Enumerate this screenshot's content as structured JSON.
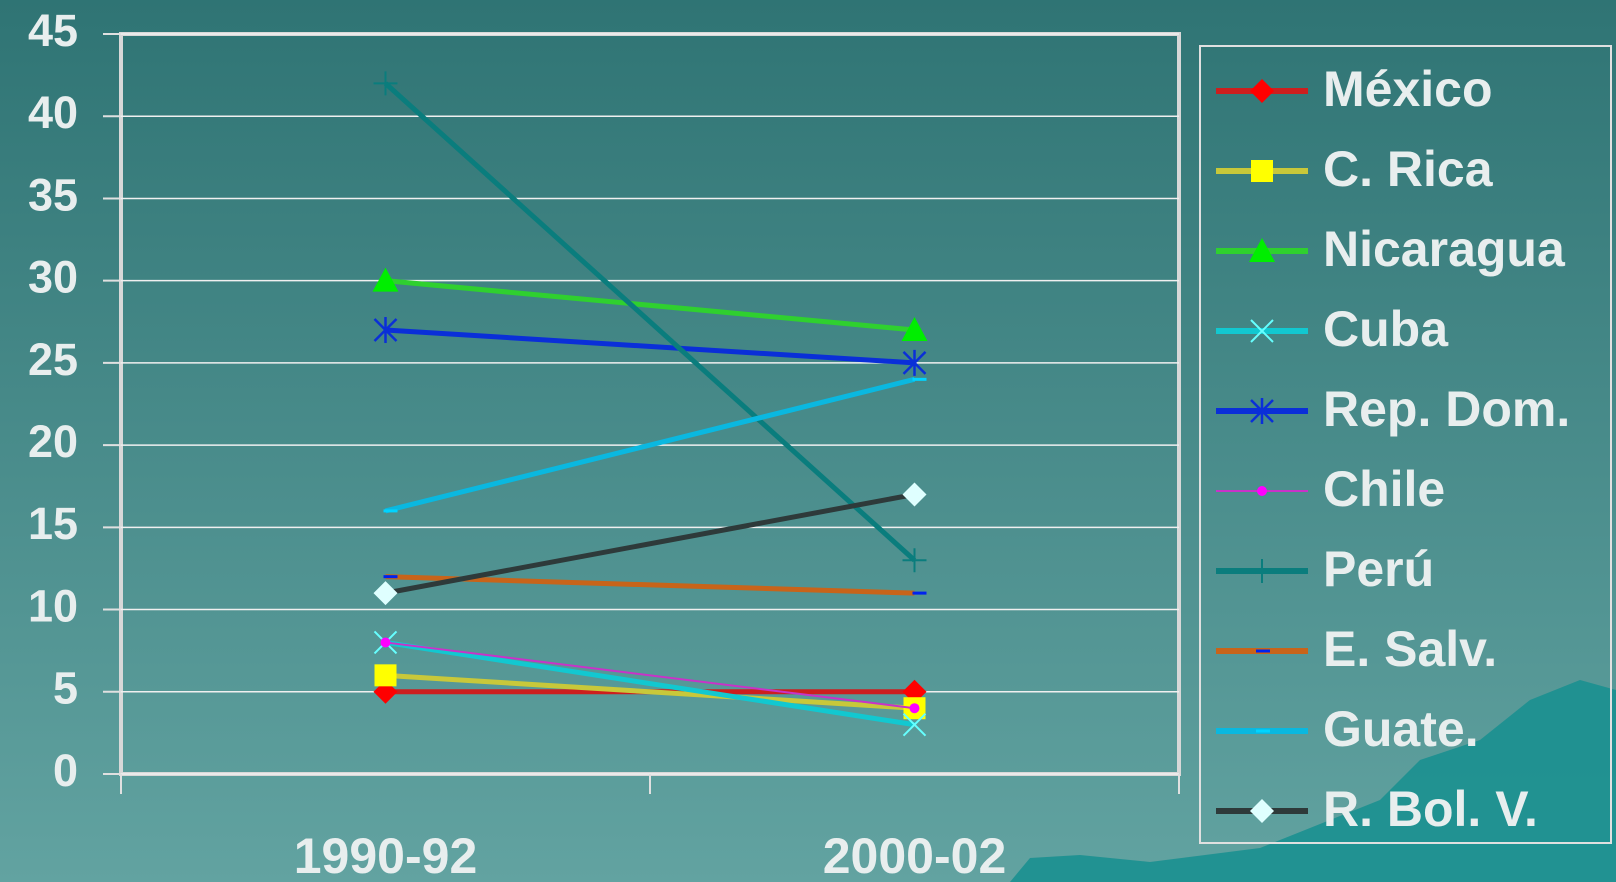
{
  "chart_data": {
    "type": "line",
    "categories": [
      "1990-92",
      "2000-02"
    ],
    "ylim": [
      0,
      45
    ],
    "yticks": [
      0,
      5,
      10,
      15,
      20,
      25,
      30,
      35,
      40,
      45
    ],
    "grid": true,
    "legend": "right",
    "series": [
      {
        "name": "México",
        "color": "#cc1f1f",
        "marker_color": "#ff0000",
        "marker": "diamond",
        "values": [
          5,
          5
        ]
      },
      {
        "name": "C. Rica",
        "color": "#c8c83a",
        "marker_color": "#ffff00",
        "marker": "square",
        "values": [
          6,
          4
        ]
      },
      {
        "name": "Nicaragua",
        "color": "#2fd02f",
        "marker_color": "#00ee00",
        "marker": "triangle",
        "values": [
          30,
          27
        ]
      },
      {
        "name": "Cuba",
        "color": "#12c8d0",
        "marker_color": "#66ffff",
        "marker": "x",
        "values": [
          8,
          3
        ]
      },
      {
        "name": "Rep. Dom.",
        "color": "#0a2fd8",
        "marker_color": "#0a2fd8",
        "marker": "star",
        "values": [
          27,
          25
        ]
      },
      {
        "name": "Chile",
        "color": "#c833c8",
        "marker_color": "#ff00ff",
        "marker": "circle",
        "values": [
          8,
          4
        ]
      },
      {
        "name": "Perú",
        "color": "#0a7d7d",
        "marker_color": "#0a7d7d",
        "marker": "plus",
        "values": [
          42,
          13
        ]
      },
      {
        "name": "E. Salv.",
        "color": "#c8641a",
        "marker_color": "#0022ee",
        "marker": "dash",
        "values": [
          12,
          11
        ]
      },
      {
        "name": "Guate.",
        "color": "#0ab8e0",
        "marker_color": "#00d4ff",
        "marker": "dash",
        "values": [
          16,
          24
        ]
      },
      {
        "name": "R. Bol. V.",
        "color": "#2e3a3a",
        "marker_color": "#dfffff",
        "marker": "diamond",
        "values": [
          11,
          17
        ]
      }
    ]
  }
}
